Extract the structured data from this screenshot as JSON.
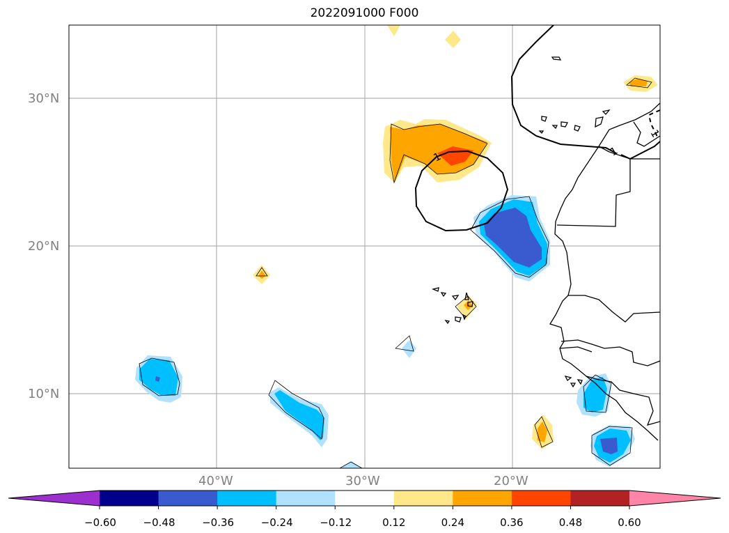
{
  "title": "2022091000 F000",
  "axes": {
    "lon_range": [
      -50,
      -10
    ],
    "lat_range": [
      5,
      35
    ],
    "lat_ticks": [
      {
        "value": 30,
        "label": "30°N"
      },
      {
        "value": 20,
        "label": "20°N"
      },
      {
        "value": 10,
        "label": "10°N"
      }
    ],
    "lon_ticks": [
      {
        "value": -40,
        "label": "40°W"
      },
      {
        "value": -30,
        "label": "30°W"
      },
      {
        "value": -20,
        "label": "20°W"
      }
    ],
    "grid": true
  },
  "colorbar": {
    "levels": [
      "−0.60",
      "−0.48",
      "−0.36",
      "−0.24",
      "−0.12",
      "0.12",
      "0.24",
      "0.36",
      "0.48",
      "0.60"
    ],
    "colors": [
      "#9b30cf",
      "#00008b",
      "#3a5bd0",
      "#00bfff",
      "#b0e2ff",
      "#ffffff",
      "#ffe88a",
      "#ffa500",
      "#ff4500",
      "#b22222",
      "#ff85a8"
    ],
    "extend": "both"
  },
  "contour_label": "1",
  "features": {
    "coastline_color": "#000000",
    "contour_line_color": "#000000"
  }
}
